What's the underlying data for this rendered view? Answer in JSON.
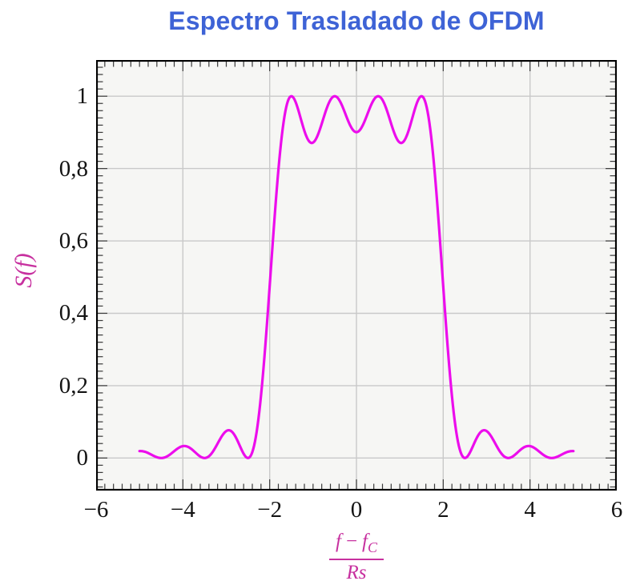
{
  "title": {
    "text": "Espectro Trasladado de OFDM",
    "color": "#3e63d6"
  },
  "axes": {
    "ylabel": "S(f)",
    "xlabel": {
      "f1": "f",
      "minus": "−",
      "f2": "f",
      "sub": "C",
      "den": "Rs"
    },
    "label_color": "#c7309f",
    "tick_label_color": "#141414"
  },
  "chart_data": {
    "type": "line",
    "title": "Espectro Trasladado de OFDM",
    "xlabel": "(f − f_C) / Rs",
    "ylabel": "S(f)",
    "xlim": [
      -6,
      6
    ],
    "ylim": [
      -0.09,
      1.1
    ],
    "x_range": [
      -5,
      5
    ],
    "grid": true,
    "legend": "none",
    "line_color": "#ec0dec",
    "grid_color": "#c9c9c9",
    "plot_bg": "#f6f6f4",
    "frame_color": "#000000",
    "formula": "S(f) = sum over subcarriers c of sinc^2(f - c), sinc(x)=sin(pi x)/(pi x)",
    "subcarriers": [
      -1.5,
      -0.5,
      0.5,
      1.5
    ],
    "sample_step": 0.02,
    "xticks": {
      "values": [
        -6,
        -4,
        -2,
        0,
        2,
        4,
        6
      ],
      "labels": [
        "−6",
        "−4",
        "−2",
        "0",
        "2",
        "4",
        "6"
      ]
    },
    "yticks": {
      "values": [
        0,
        0.2,
        0.4,
        0.6,
        0.8,
        1
      ],
      "labels": [
        "0",
        "0,2",
        "0,4",
        "0,6",
        "0,8",
        "1"
      ]
    },
    "minor_x_step": 0.2,
    "minor_y_step": 0.02,
    "grid_x": [
      -4,
      -2,
      0,
      2,
      4
    ],
    "samples": {
      "x": [
        -5,
        -4.75,
        -4.5,
        -4.25,
        -4,
        -3.75,
        -3.5,
        -3.25,
        -3,
        -2.75,
        -2.5,
        -2.25,
        -2,
        -1.75,
        -1.5,
        -1.25,
        -1,
        -0.75,
        -0.5,
        -0.25,
        0,
        0.25,
        0.5,
        0.75,
        1,
        1.25,
        1.5,
        1.75,
        2,
        2.25,
        2.5,
        2.75,
        3,
        3.25,
        3.5,
        3.75,
        4,
        4.25,
        4.5,
        4.75,
        5
      ],
      "y": [
        0.019,
        0.0107,
        0,
        0.0141,
        0.0328,
        0.0195,
        0,
        0.0291,
        0.0745,
        0.05,
        0,
        0.1169,
        0.4748,
        0.8578,
        1,
        0.9239,
        0.8718,
        0.9431,
        1,
        0.9496,
        0.9006,
        0.9496,
        1,
        0.9431,
        0.8718,
        0.9239,
        1,
        0.8578,
        0.4748,
        0.1169,
        0,
        0.05,
        0.0745,
        0.0291,
        0,
        0.0195,
        0.0328,
        0.0141,
        0,
        0.0107,
        0.019
      ]
    },
    "features": {
      "peaks": {
        "x": [
          -1.5,
          -0.5,
          0.5,
          1.5
        ],
        "y": 1.0
      },
      "center_dip": {
        "x": 0,
        "y": 0.9006
      },
      "inner_dips": {
        "x": [
          -1,
          1
        ],
        "y": 0.8718
      },
      "nulls": [
        -4.5,
        -3.5,
        -2.5,
        2.5,
        3.5,
        4.5
      ],
      "sidelobes": {
        "x": [
          -3,
          3,
          -4,
          4
        ],
        "y": [
          0.0745,
          0.0745,
          0.0328,
          0.0328
        ]
      }
    }
  }
}
